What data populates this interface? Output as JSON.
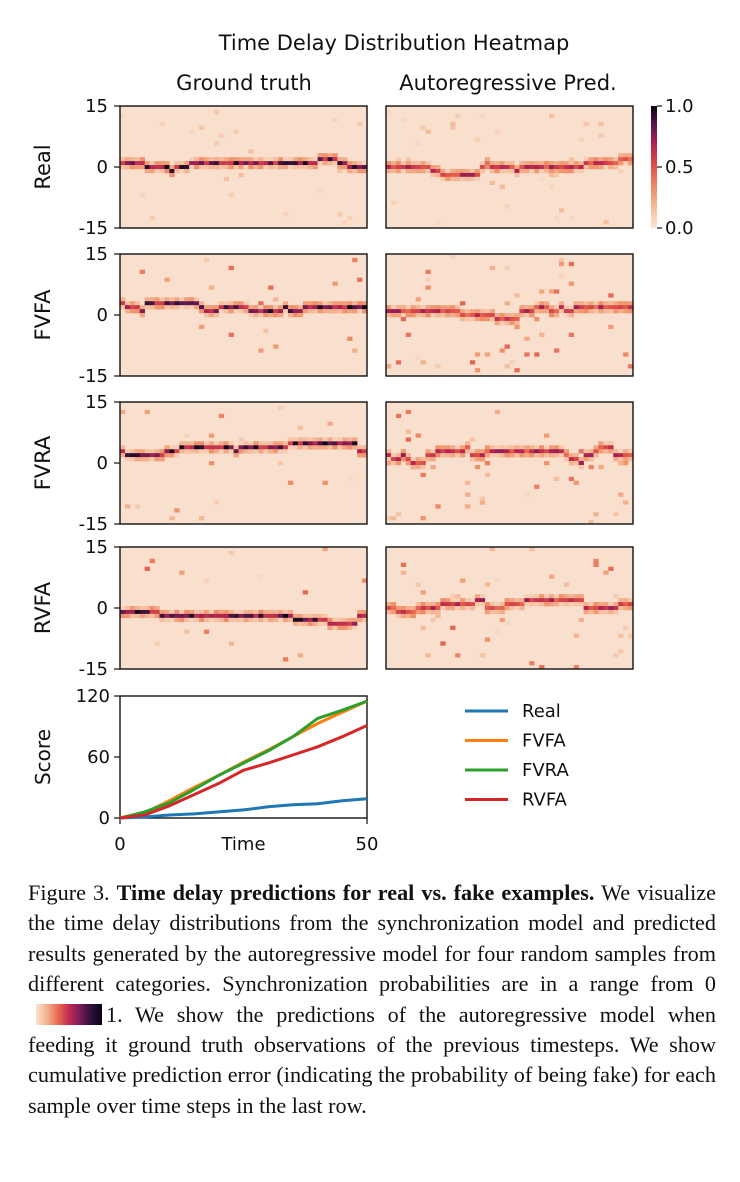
{
  "figure": {
    "title": "Time Delay Distribution Heatmap",
    "col_titles": [
      "Ground truth",
      "Autoregressive Pred."
    ],
    "row_labels": [
      "Real",
      "FVFA",
      "FVRA",
      "RVFA"
    ],
    "y_ticks": [
      "15",
      "0",
      "-15"
    ],
    "colorbar_ticks": [
      "1.0",
      "0.5",
      "0.0"
    ]
  },
  "caption": {
    "label": "Figure 3.",
    "heading": "Time delay predictions for real vs. fake examples.",
    "text1": "We visualize the time delay distributions from the synchronization model and predicted results generated by the autoregressive model for four random samples from different categories. Synchronization probabilities are in a range from 0",
    "text2": "1. We show the predictions of the autoregressive model when feeding it ground truth observations of the previous timesteps. We show cumulative prediction error (indicating the probability of being fake) for each sample over time steps in the last row."
  },
  "chart_data": [
    {
      "type": "heatmap",
      "title": "Time Delay Distribution Heatmap",
      "columns": [
        "Ground truth",
        "Autoregressive Pred."
      ],
      "rows": [
        "Real",
        "FVFA",
        "FVRA",
        "RVFA"
      ],
      "y_range": [
        -15,
        15
      ],
      "color_range": [
        0.0,
        1.0
      ],
      "colorbar_ticks": [
        1.0,
        0.5,
        0.0
      ],
      "peak_offsets": {
        "Real": {
          "Ground truth": 0,
          "Autoregressive Pred.": 0
        },
        "FVFA": {
          "Ground truth": 3,
          "Autoregressive Pred.": 1
        },
        "FVRA": {
          "Ground truth": 3,
          "Autoregressive Pred.": 2
        },
        "RVFA": {
          "Ground truth": -2,
          "Autoregressive Pred.": 0
        }
      }
    },
    {
      "type": "line",
      "xlabel": "Time",
      "ylabel": "Score",
      "xlim": [
        0,
        50
      ],
      "ylim": [
        0,
        120
      ],
      "x_ticks": [
        0,
        50
      ],
      "y_ticks": [
        0,
        60,
        120
      ],
      "legend_position": "right",
      "x": [
        0,
        5,
        10,
        15,
        20,
        25,
        30,
        35,
        40,
        45,
        50
      ],
      "series": [
        {
          "name": "Real",
          "color": "#1f77b4",
          "values": [
            0,
            1,
            3,
            4,
            6,
            8,
            11,
            13,
            14,
            17,
            19
          ]
        },
        {
          "name": "FVFA",
          "color": "#ff7f0e",
          "values": [
            0,
            5,
            17,
            30,
            42,
            55,
            67,
            80,
            93,
            104,
            115
          ]
        },
        {
          "name": "FVRA",
          "color": "#2ca02c",
          "values": [
            0,
            6,
            15,
            28,
            42,
            54,
            66,
            80,
            98,
            106,
            115
          ]
        },
        {
          "name": "RVFA",
          "color": "#d62728",
          "values": [
            0,
            3,
            12,
            23,
            34,
            47,
            54,
            62,
            70,
            80,
            91
          ]
        }
      ]
    }
  ]
}
